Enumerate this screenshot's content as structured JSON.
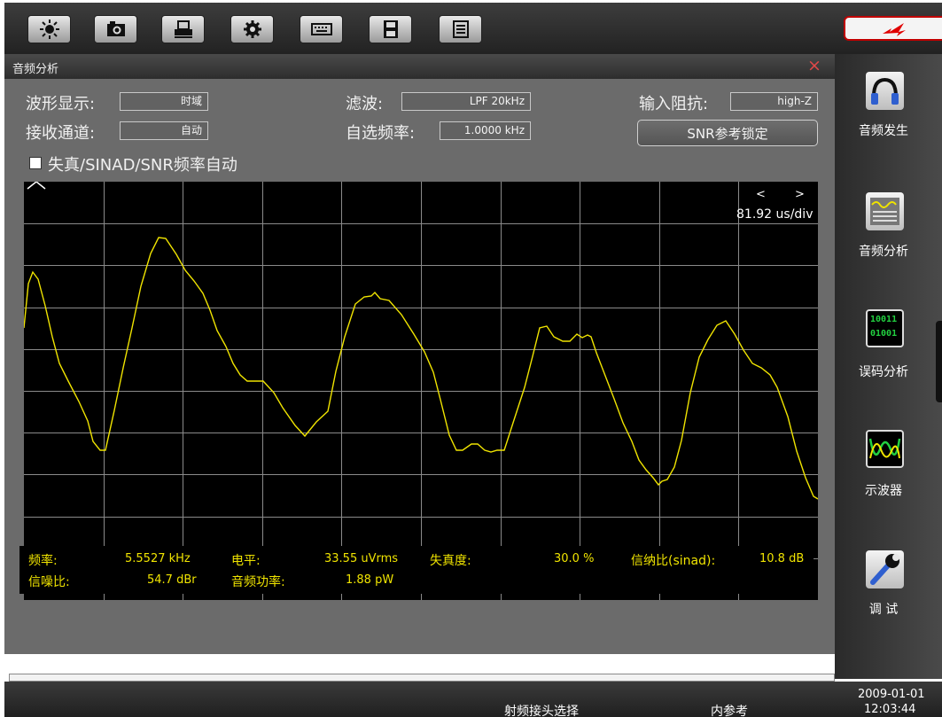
{
  "toolbar": {
    "buttons": [
      {
        "icon": "brightness-icon"
      },
      {
        "icon": "camera-icon"
      },
      {
        "icon": "printer-icon"
      },
      {
        "icon": "settings-icon"
      },
      {
        "icon": "keyboard-icon"
      },
      {
        "icon": "save-icon"
      },
      {
        "icon": "list-icon"
      }
    ],
    "status_icon": "rf-power-icon",
    "status_color": "#e00000"
  },
  "window": {
    "title": "音频分析",
    "close_glyph": "×"
  },
  "controls": {
    "waveform_label": "波形显示:",
    "waveform_value": "时域",
    "channel_label": "接收通道:",
    "channel_value": "自动",
    "filter_label": "滤波:",
    "filter_value": "LPF 20kHz",
    "custom_freq_label": "自选频率:",
    "custom_freq_value": "1.0000 kHz",
    "impedance_label": "输入阻抗:",
    "impedance_value": "high-Z",
    "snr_lock_button": "SNR参考锁定",
    "auto_freq_label": "失真/SINAD/SNR频率自动",
    "auto_freq_checked": false
  },
  "scope": {
    "zoom_left": "<",
    "zoom_right": ">",
    "timebase": "81.92 us/div",
    "trace_color": "#f0e400",
    "grid_color": "#8a8a8a",
    "grid_cols": 10,
    "grid_rows": 10
  },
  "measurements": {
    "freq_label": "频率:",
    "freq_value": "5.5527 kHz",
    "level_label": "电平:",
    "level_value": "33.55 uVrms",
    "distortion_label": "失真度:",
    "distortion_value": "30.0 %",
    "sinad_label": "信纳比(sinad):",
    "sinad_value": "10.8 dB",
    "snr_label": "信噪比:",
    "snr_value": "54.7 dBr",
    "power_label": "音频功率:",
    "power_value": "1.88 pW"
  },
  "sidebar": {
    "items": [
      {
        "label": "音频发生",
        "icon": "headphones-icon"
      },
      {
        "label": "音频分析",
        "icon": "audio-analysis-icon"
      },
      {
        "label": "误码分析",
        "icon": "bit-error-icon",
        "icon_text_top": "10011",
        "icon_text_bottom": "01001"
      },
      {
        "label": "示波器",
        "icon": "oscilloscope-icon"
      },
      {
        "label": "调 试",
        "icon": "wrench-icon"
      }
    ]
  },
  "statusbar": {
    "rf_connector": "射频接头选择",
    "reference": "内参考",
    "date": "2009-01-01",
    "time": "12:03:44"
  }
}
